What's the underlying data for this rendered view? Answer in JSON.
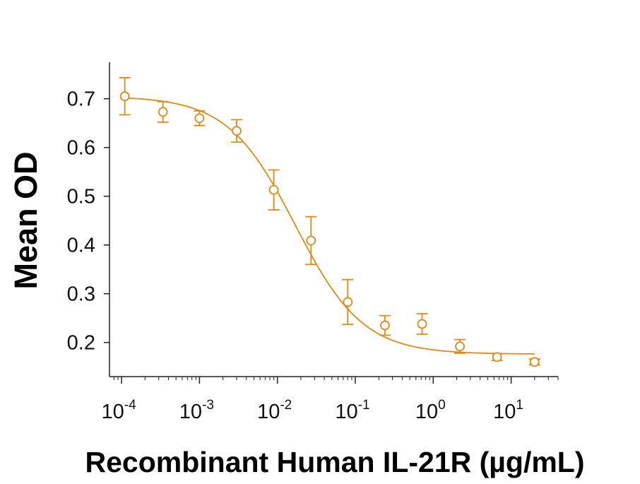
{
  "chart_data": {
    "type": "scatter",
    "title": "",
    "xlabel": "Recombinant Human IL-21R (µg/mL)",
    "ylabel": "Mean OD",
    "x_scale": "log",
    "xlim": [
      7e-05,
      40
    ],
    "ylim": [
      0.13,
      0.775
    ],
    "y_ticks": [
      "0.2",
      "0.3",
      "0.4",
      "0.5",
      "0.6",
      "0.7"
    ],
    "x_ticks": [
      {
        "base": "10",
        "exp": "-4",
        "value": 0.0001
      },
      {
        "base": "10",
        "exp": "-3",
        "value": 0.001
      },
      {
        "base": "10",
        "exp": "-2",
        "value": 0.01
      },
      {
        "base": "10",
        "exp": "-1",
        "value": 0.1
      },
      {
        "base": "10",
        "exp": "0",
        "value": 1
      },
      {
        "base": "10",
        "exp": "1",
        "value": 10
      }
    ],
    "grid": false,
    "legend": "none",
    "series": [
      {
        "color": "#E08A14",
        "x": [
          0.00011,
          0.00034,
          0.001,
          0.003,
          0.009,
          0.027,
          0.08,
          0.24,
          0.72,
          2.2,
          6.6,
          20
        ],
        "y": [
          0.705,
          0.673,
          0.66,
          0.634,
          0.513,
          0.409,
          0.283,
          0.235,
          0.238,
          0.192,
          0.17,
          0.16
        ],
        "error": [
          0.038,
          0.021,
          0.015,
          0.023,
          0.041,
          0.049,
          0.046,
          0.02,
          0.021,
          0.014,
          0.007,
          0.006
        ]
      }
    ],
    "fit_curve": {
      "model": "4PL",
      "top": 0.705,
      "bottom": 0.176,
      "ec50": 0.017,
      "hill": 1.0,
      "x_start": 0.00011,
      "x_end": 20
    }
  }
}
